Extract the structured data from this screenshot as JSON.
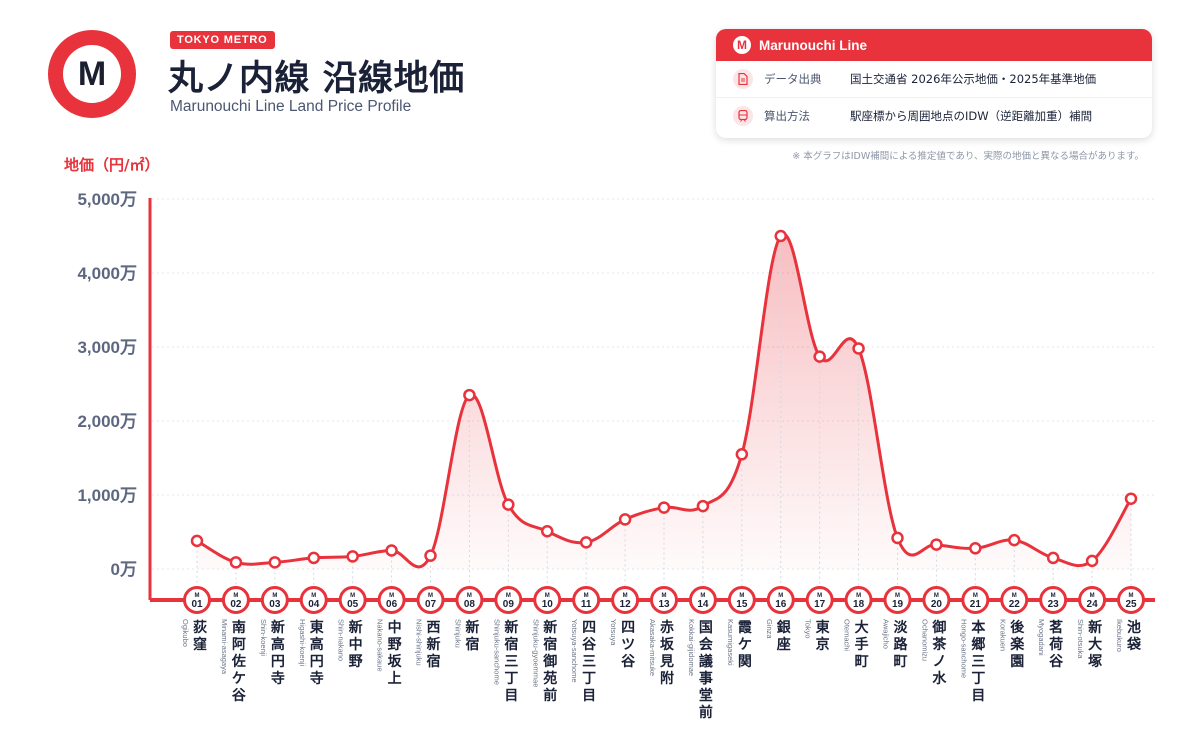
{
  "header": {
    "logo_letter": "M",
    "brand_tag": "TOKYO METRO",
    "title": "丸ノ内線 沿線地価",
    "subtitle": "Marunouchi Line Land Price Profile"
  },
  "info_card": {
    "logo_letter": "M",
    "title": "Marunouchi Line",
    "rows": [
      {
        "icon": "document-icon",
        "label": "データ出典",
        "value": "国土交通省 2026年公示地価・2025年基準地価"
      },
      {
        "icon": "train-icon",
        "label": "算出方法",
        "value": "駅座標から周囲地点のIDW（逆距離加重）補間"
      }
    ]
  },
  "note": "※ 本グラフはIDW補間による推定値であり、実際の地価と異なる場合があります。",
  "colors": {
    "accent": "#e8323c",
    "text": "#1b2238",
    "axis_text": "#5d6780"
  },
  "chart_data": {
    "type": "area",
    "ylabel": "地価（円/㎡）",
    "ylim": [
      0,
      50000000
    ],
    "yticks": [
      0,
      10000000,
      20000000,
      30000000,
      40000000,
      50000000
    ],
    "ytick_labels": [
      "0万",
      "1,000万",
      "2,000万",
      "3,000万",
      "4,000万",
      "5,000万"
    ],
    "grid": true,
    "stations": [
      {
        "num": "01",
        "name": "荻窪",
        "romaji": "Ogikubo",
        "value": 3800000
      },
      {
        "num": "02",
        "name": "南阿佐ケ谷",
        "romaji": "Minami-asagaya",
        "value": 900000
      },
      {
        "num": "03",
        "name": "新高円寺",
        "romaji": "Shin-koenji",
        "value": 900000
      },
      {
        "num": "04",
        "name": "東高円寺",
        "romaji": "Higashi-koenji",
        "value": 1500000
      },
      {
        "num": "05",
        "name": "新中野",
        "romaji": "Shin-nakano",
        "value": 1700000
      },
      {
        "num": "06",
        "name": "中野坂上",
        "romaji": "Nakano-sakaue",
        "value": 2500000
      },
      {
        "num": "07",
        "name": "西新宿",
        "romaji": "Nishi-shinjuku",
        "value": 1800000
      },
      {
        "num": "08",
        "name": "新宿",
        "romaji": "Shinjuku",
        "value": 23500000
      },
      {
        "num": "09",
        "name": "新宿三丁目",
        "romaji": "Shinjuku-sanchome",
        "value": 8700000
      },
      {
        "num": "10",
        "name": "新宿御苑前",
        "romaji": "Shinjuku-gyoemmae",
        "value": 5100000
      },
      {
        "num": "11",
        "name": "四谷三丁目",
        "romaji": "Yotsuya-sanchome",
        "value": 3600000
      },
      {
        "num": "12",
        "name": "四ツ谷",
        "romaji": "Yotsuya",
        "value": 6700000
      },
      {
        "num": "13",
        "name": "赤坂見附",
        "romaji": "Akasaka-mitsuke",
        "value": 8300000
      },
      {
        "num": "14",
        "name": "国会議事堂前",
        "romaji": "Kokkai-gijidomae",
        "value": 8500000
      },
      {
        "num": "15",
        "name": "霞ケ関",
        "romaji": "Kasumigaseki",
        "value": 15500000
      },
      {
        "num": "16",
        "name": "銀座",
        "romaji": "Ginza",
        "value": 45000000
      },
      {
        "num": "17",
        "name": "東京",
        "romaji": "Tokyo",
        "value": 28700000
      },
      {
        "num": "18",
        "name": "大手町",
        "romaji": "Otemachi",
        "value": 29800000
      },
      {
        "num": "19",
        "name": "淡路町",
        "romaji": "Awajicho",
        "value": 4200000
      },
      {
        "num": "20",
        "name": "御茶ノ水",
        "romaji": "Ochanomizu",
        "value": 3300000
      },
      {
        "num": "21",
        "name": "本郷三丁目",
        "romaji": "Hongo-sanchome",
        "value": 2800000
      },
      {
        "num": "22",
        "name": "後楽園",
        "romaji": "Korakuen",
        "value": 3900000
      },
      {
        "num": "23",
        "name": "茗荷谷",
        "romaji": "Myogadani",
        "value": 1500000
      },
      {
        "num": "24",
        "name": "新大塚",
        "romaji": "Shin-otsuka",
        "value": 1100000
      },
      {
        "num": "25",
        "name": "池袋",
        "romaji": "Ikebukuro",
        "value": 9500000
      }
    ]
  }
}
